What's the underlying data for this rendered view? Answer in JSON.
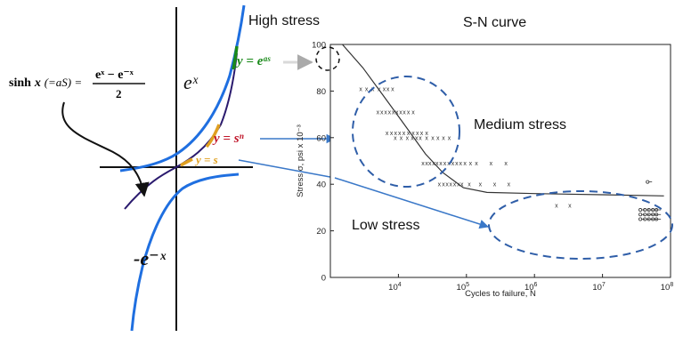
{
  "left_panel": {
    "formula_lhs_fn": "sinh",
    "formula_lhs_var": "x",
    "formula_lhs_paren": "(=aS) =",
    "formula_numerator": "eˣ − e⁻ˣ",
    "formula_denominator": "2",
    "curve_label_ex": "eˣ",
    "curve_label_neg_ex": "-e⁻ˣ",
    "label_y_eas": "y = eᵃˢ",
    "label_y_sn": "y = sⁿ",
    "label_y_s": "y = s",
    "colors": {
      "curve_blue": "#1f6fe0",
      "curve_dark": "#2a1a6e",
      "green": "#1a8a1a",
      "red": "#c0162a",
      "orange": "#e0a020",
      "arrow_blue": "#3a78c8"
    }
  },
  "titles": {
    "high_stress": "High stress",
    "sn_curve": "S-N curve",
    "medium_stress": "Medium stress",
    "low_stress": "Low stress"
  },
  "chart_data": {
    "type": "scatter",
    "xlabel": "Cycles to failure, N",
    "ylabel": "Stress σ, psi x 10⁻³",
    "x_scale": "log",
    "xlim": [
      1000,
      100000000
    ],
    "ylim": [
      0,
      100
    ],
    "x_ticks": [
      {
        "value": 10000,
        "base": "10",
        "exp": "4"
      },
      {
        "value": 100000,
        "base": "10",
        "exp": "5"
      },
      {
        "value": 1000000,
        "base": "10",
        "exp": "6"
      },
      {
        "value": 10000000,
        "base": "10",
        "exp": "7"
      },
      {
        "value": 100000000,
        "base": "10",
        "exp": "8"
      }
    ],
    "y_ticks": [
      "0",
      "20",
      "40",
      "60",
      "80",
      "100"
    ],
    "y_tick_values": [
      0,
      20,
      40,
      60,
      80,
      100
    ],
    "fit_curve": [
      [
        1500,
        100
      ],
      [
        3000,
        90
      ],
      [
        6000,
        78
      ],
      [
        12000,
        66
      ],
      [
        25000,
        53
      ],
      [
        45000,
        45
      ],
      [
        90000,
        38.5
      ],
      [
        200000,
        36.5
      ],
      [
        1000000,
        36
      ],
      [
        10000000,
        35.5
      ],
      [
        80000000,
        35
      ]
    ],
    "failures": [
      [
        2800,
        81
      ],
      [
        3400,
        81
      ],
      [
        4200,
        81
      ],
      [
        5200,
        81
      ],
      [
        6200,
        81
      ],
      [
        7000,
        81
      ],
      [
        8200,
        81
      ],
      [
        5000,
        71
      ],
      [
        5700,
        71
      ],
      [
        6500,
        71
      ],
      [
        7400,
        71
      ],
      [
        8400,
        71
      ],
      [
        9500,
        71
      ],
      [
        10800,
        71
      ],
      [
        12200,
        71
      ],
      [
        14000,
        71
      ],
      [
        16500,
        71
      ],
      [
        6800,
        62
      ],
      [
        7900,
        62
      ],
      [
        9100,
        62
      ],
      [
        10400,
        62
      ],
      [
        12000,
        62
      ],
      [
        14000,
        62
      ],
      [
        16500,
        62
      ],
      [
        19000,
        62
      ],
      [
        22000,
        62
      ],
      [
        26000,
        62
      ],
      [
        9000,
        60
      ],
      [
        11000,
        60
      ],
      [
        13500,
        60
      ],
      [
        16000,
        60
      ],
      [
        18500,
        60
      ],
      [
        21000,
        60
      ],
      [
        26000,
        60
      ],
      [
        32000,
        60
      ],
      [
        38000,
        60
      ],
      [
        46000,
        60
      ],
      [
        56000,
        60
      ],
      [
        23000,
        49
      ],
      [
        26000,
        49
      ],
      [
        29000,
        49
      ],
      [
        33000,
        49
      ],
      [
        37000,
        49
      ],
      [
        42000,
        49
      ],
      [
        48000,
        49
      ],
      [
        55000,
        49
      ],
      [
        63000,
        49
      ],
      [
        72000,
        49
      ],
      [
        82000,
        49
      ],
      [
        95000,
        49
      ],
      [
        115000,
        49
      ],
      [
        140000,
        49
      ],
      [
        230000,
        49
      ],
      [
        380000,
        49
      ],
      [
        40000,
        40
      ],
      [
        46000,
        40
      ],
      [
        52000,
        40
      ],
      [
        59000,
        40
      ],
      [
        67000,
        40
      ],
      [
        76000,
        40
      ],
      [
        86000,
        40
      ],
      [
        110000,
        40
      ],
      [
        160000,
        40
      ],
      [
        260000,
        40
      ],
      [
        420000,
        40
      ],
      [
        2100000,
        31
      ],
      [
        3300000,
        31
      ]
    ],
    "runouts": [
      [
        36000000,
        29
      ],
      [
        42000000,
        29
      ],
      [
        48000000,
        29
      ],
      [
        55000000,
        29
      ],
      [
        62000000,
        29
      ],
      [
        36000000,
        27
      ],
      [
        42000000,
        27
      ],
      [
        48000000,
        27
      ],
      [
        55000000,
        27
      ],
      [
        62000000,
        27
      ],
      [
        36000000,
        25
      ],
      [
        42000000,
        25
      ],
      [
        48000000,
        25
      ],
      [
        55000000,
        25
      ],
      [
        62000000,
        25
      ],
      [
        46000000,
        41
      ]
    ]
  }
}
